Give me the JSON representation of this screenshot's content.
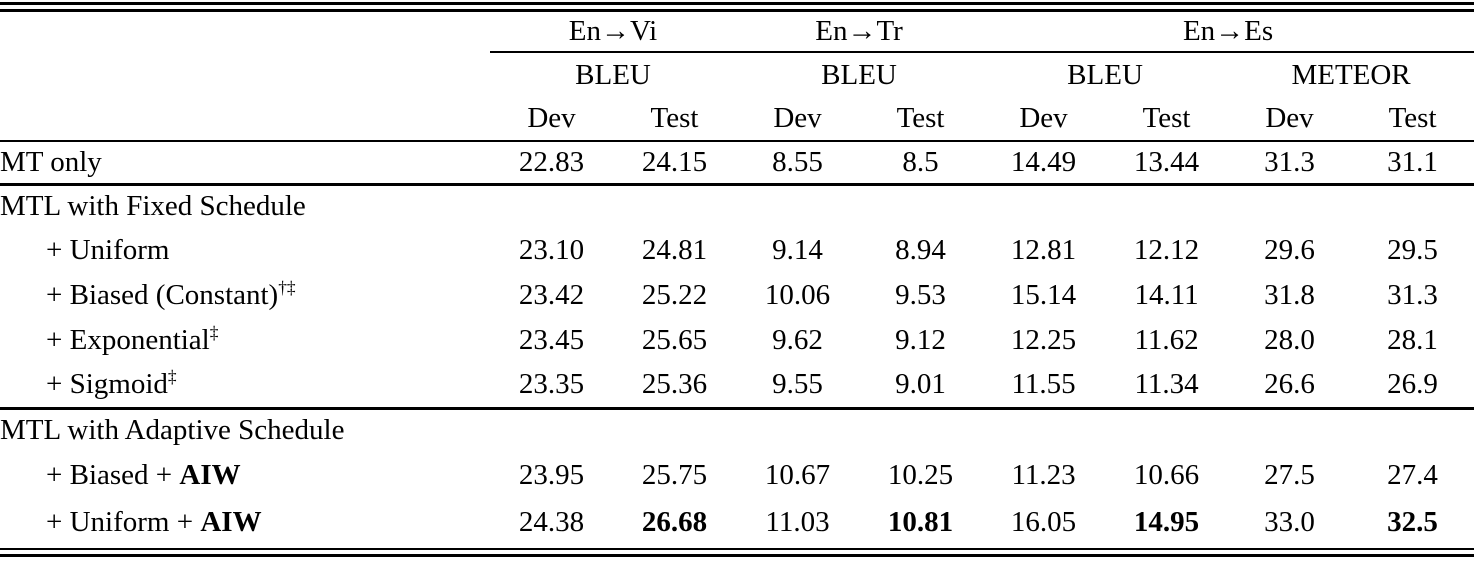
{
  "table": {
    "language_groups": [
      {
        "label": "En→Vi"
      },
      {
        "label": "En→Tr"
      },
      {
        "label": "En→Es"
      }
    ],
    "metric_groups": [
      {
        "label": "BLEU"
      },
      {
        "label": "BLEU"
      },
      {
        "label": "BLEU"
      },
      {
        "label": "METEOR"
      }
    ],
    "split_headers": [
      "Dev",
      "Test",
      "Dev",
      "Test",
      "Dev",
      "Test",
      "Dev",
      "Test"
    ],
    "rows": [
      {
        "label": "MT only",
        "values": [
          "22.83",
          "24.15",
          "8.55",
          "8.5",
          "14.49",
          "13.44",
          "31.3",
          "31.1"
        ]
      },
      {
        "label": "MTL with Fixed Schedule"
      },
      {
        "label": "+ Uniform",
        "values": [
          "23.10",
          "24.81",
          "9.14",
          "8.94",
          "12.81",
          "12.12",
          "29.6",
          "29.5"
        ]
      },
      {
        "label": "+ Biased (Constant)",
        "sup": "†‡",
        "values": [
          "23.42",
          "25.22",
          "10.06",
          "9.53",
          "15.14",
          "14.11",
          "31.8",
          "31.3"
        ]
      },
      {
        "label": "+ Exponential",
        "sup": "‡",
        "values": [
          "23.45",
          "25.65",
          "9.62",
          "9.12",
          "12.25",
          "11.62",
          "28.0",
          "28.1"
        ]
      },
      {
        "label": "+ Sigmoid",
        "sup": "‡",
        "values": [
          "23.35",
          "25.36",
          "9.55",
          "9.01",
          "11.55",
          "11.34",
          "26.6",
          "26.9"
        ]
      },
      {
        "label": "MTL with Adaptive Schedule"
      },
      {
        "label": "+ Biased + ",
        "label_bold": "AIW",
        "values": [
          "23.95",
          "25.75",
          "10.67",
          "10.25",
          "11.23",
          "10.66",
          "27.5",
          "27.4"
        ]
      },
      {
        "label": "+ Uniform + ",
        "label_bold": "AIW",
        "values": [
          "24.38",
          "26.68",
          "11.03",
          "10.81",
          "16.05",
          "14.95",
          "33.0",
          "32.5"
        ],
        "bold_value_columns": [
          1,
          3,
          5,
          7
        ]
      }
    ],
    "colors": {
      "rule": "#000000",
      "text": "#000000",
      "background": "#ffffff"
    }
  }
}
